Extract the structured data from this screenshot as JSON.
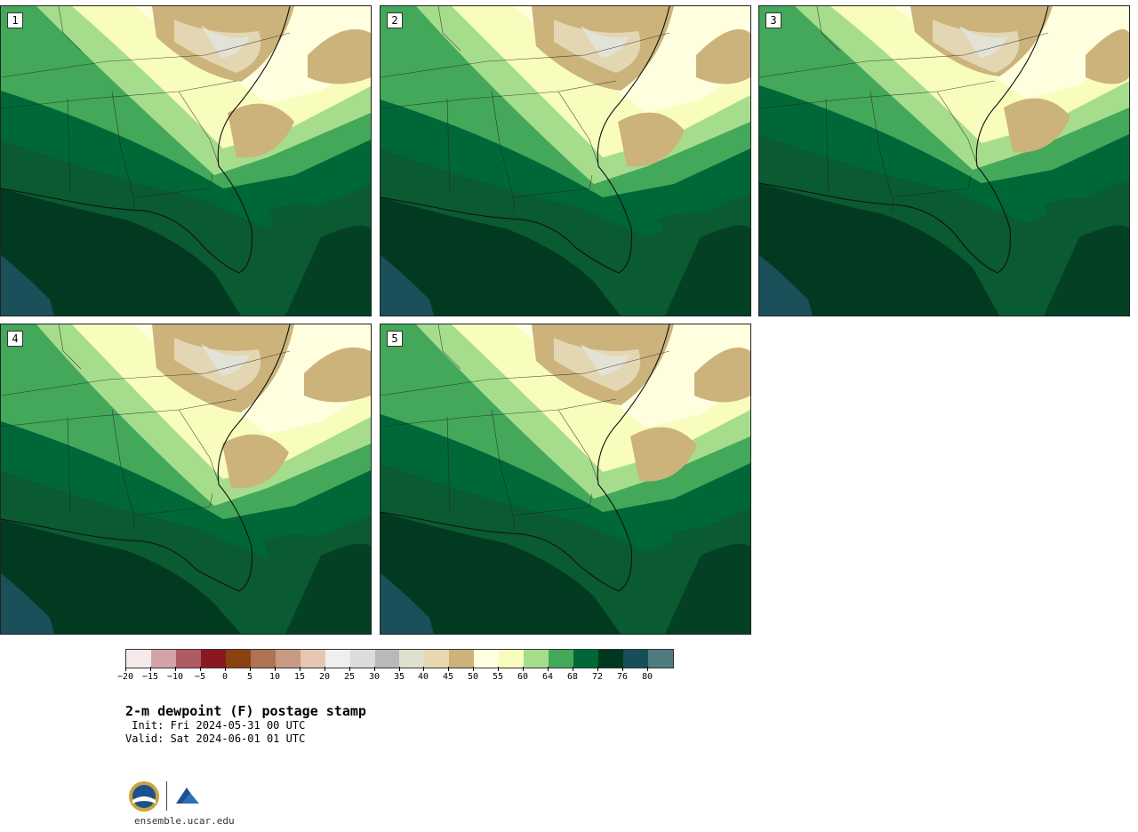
{
  "panels": [
    {
      "label": "1"
    },
    {
      "label": "2"
    },
    {
      "label": "3"
    },
    {
      "label": "4"
    },
    {
      "label": "5"
    }
  ],
  "colorbar": {
    "colors": [
      "#f5e9e9",
      "#d4a3a8",
      "#b05a63",
      "#8a1823",
      "#8a4310",
      "#ad7352",
      "#c99a82",
      "#e5c6b3",
      "#efefef",
      "#dcdcdc",
      "#b9b9b9",
      "#e0e0d0",
      "#e6d7b0",
      "#cbb37b",
      "#ffffe2",
      "#f8fcbd",
      "#a6dd8d",
      "#43a85a",
      "#006837",
      "#013820",
      "#164f58",
      "#4e7a80"
    ],
    "tick_labels": [
      "−20",
      "−15",
      "−10",
      "−5",
      "0",
      "5",
      "10",
      "15",
      "20",
      "25",
      "30",
      "35",
      "40",
      "45",
      "50",
      "55",
      "60",
      "64",
      "68",
      "72",
      "76",
      "80"
    ]
  },
  "title": "2-m dewpoint (F) postage stamp",
  "init_line": " Init: Fri 2024-05-31 00 UTC",
  "valid_line": "Valid: Sat 2024-06-01 01 UTC",
  "logo": {
    "nsf_text": "NSF",
    "ncar_text": "NCAR",
    "site": "ensemble.ucar.edu"
  }
}
